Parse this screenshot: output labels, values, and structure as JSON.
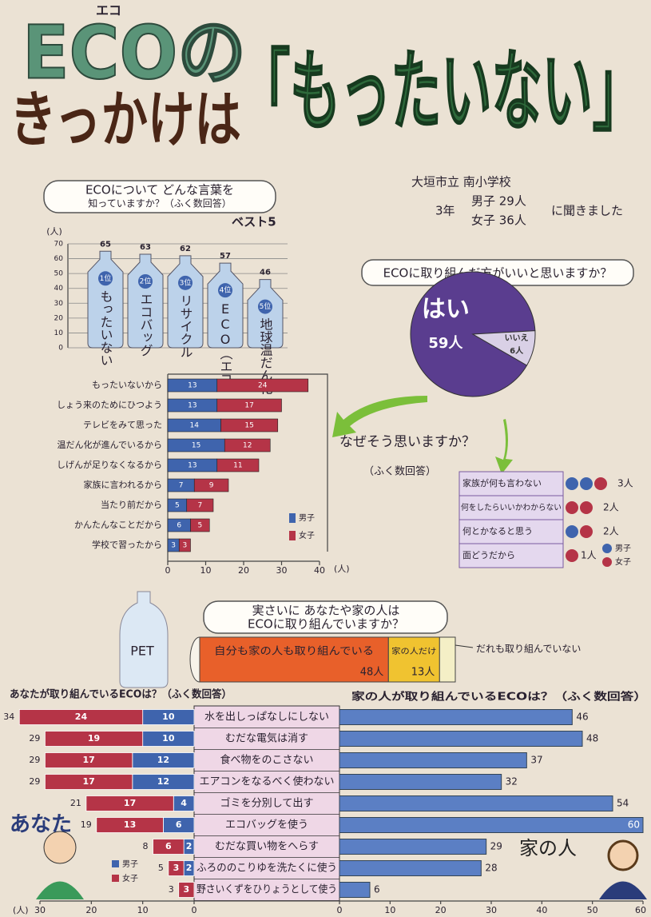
{
  "title": {
    "ruby": "エコ",
    "line1": "ECOの",
    "line2": "きっかけは",
    "keyword": "「もったいない」"
  },
  "survey": {
    "school": "大垣市立 南小学校",
    "grade": "3年",
    "boys": "男子 29人",
    "girls": "女子 36人",
    "note": "に聞きました"
  },
  "pet_label": "PET",
  "chart_data": [
    {
      "type": "bottle_bar",
      "title": [
        "ECOについて どんな言葉を",
        "知っていますか？（ふく数回答）"
      ],
      "badge": "ベスト5",
      "y_label": "(人)",
      "categories": [
        "もったいない",
        "エコバッグ",
        "リサイクル",
        "ECO（エコ）",
        "地球温だん化"
      ],
      "rank_labels": [
        "1位",
        "2位",
        "3位",
        "4位",
        "5位"
      ],
      "values": [
        65,
        63,
        62,
        57,
        46
      ],
      "ylim": [
        0,
        70
      ],
      "yticks": [
        0,
        10,
        20,
        30,
        40,
        50,
        60,
        70
      ],
      "color": "#bcd2ea"
    },
    {
      "type": "pie",
      "title": "ECOに取り組んだ方がいいと思いますか？",
      "categories": [
        "はい",
        "いいえ"
      ],
      "values": [
        59,
        6
      ],
      "value_labels": [
        "59人",
        "6人"
      ],
      "colors": [
        "#5a3d8f",
        "#d9d0e6"
      ]
    },
    {
      "type": "hbar_stacked",
      "title": "なぜそう思いますか？",
      "subtitle": "（ふく数回答）",
      "categories": [
        "もったいないから",
        "しょう来のためにひつよう",
        "テレビをみて思った",
        "温だん化が進んでいるから",
        "しげんが足りなくなるから",
        "家族に言われるから",
        "当たり前だから",
        "かんたんなことだから",
        "学校で習ったから"
      ],
      "series": [
        {
          "name": "男子",
          "color": "#3f64ad",
          "values": [
            13,
            13,
            14,
            15,
            13,
            7,
            5,
            6,
            3
          ]
        },
        {
          "name": "女子",
          "color": "#b53447",
          "values": [
            24,
            17,
            15,
            12,
            11,
            9,
            7,
            5,
            3
          ]
        }
      ],
      "xlim": [
        0,
        40
      ],
      "xticks": [
        0,
        10,
        20,
        30,
        40
      ],
      "x_label": "(人)"
    },
    {
      "type": "stacked_strip",
      "title": [
        "実さいに あなたや家の人は",
        "ECOに取り組んでいますか？"
      ],
      "categories": [
        "自分も家の人も取り組んでいる",
        "家の人だけ",
        "だれも取り組んでいない"
      ],
      "values": [
        48,
        13,
        4
      ],
      "value_labels": [
        "48人",
        "13人",
        null
      ],
      "colors": [
        "#e8602a",
        "#f0c330",
        "#f4efc6"
      ]
    },
    {
      "type": "butterfly",
      "categories": [
        "水を出しっぱなしにしない",
        "むだな電気は消す",
        "食べ物をのこさない",
        "エアコンをなるべく使わない",
        "ゴミを分別して出す",
        "エコバッグを使う",
        "むだな買い物をへらす",
        "ふろののこりゆを洗たくに使う",
        "野さいくずをひりょうとして使う"
      ],
      "left": {
        "title": "あなたが取り組んでいるECOは？（ふく数回答）",
        "label": "あなた",
        "series": [
          {
            "name": "男子",
            "color": "#3f64ad",
            "values": [
              10,
              10,
              12,
              12,
              4,
              6,
              2,
              2,
              0
            ]
          },
          {
            "name": "女子",
            "color": "#b53447",
            "values": [
              24,
              19,
              17,
              17,
              17,
              13,
              6,
              3,
              3
            ]
          }
        ],
        "totals": [
          34,
          29,
          29,
          29,
          21,
          19,
          8,
          5,
          3
        ],
        "xlim": [
          0,
          30
        ],
        "xticks": [
          0,
          10,
          20,
          30
        ],
        "x_label": "(人)"
      },
      "right": {
        "title": "家の人が取り組んでいるECOは？（ふく数回答）",
        "label": "家の人",
        "color": "#5b7fc4",
        "values": [
          46,
          48,
          37,
          32,
          54,
          60,
          29,
          28,
          6
        ],
        "xlim": [
          0,
          60
        ],
        "xticks": [
          0,
          10,
          20,
          30,
          40,
          50,
          60
        ]
      }
    }
  ],
  "reasons_table": {
    "rows": [
      {
        "label": "家族が何も言わない",
        "count": "3人"
      },
      {
        "label": "何をしたらいいかわからない",
        "count": "2人"
      },
      {
        "label": "何とかなると思う",
        "count": "2人"
      },
      {
        "label": "面どうだから",
        "count": "1人"
      }
    ],
    "legend": [
      "男子",
      "女子"
    ]
  }
}
